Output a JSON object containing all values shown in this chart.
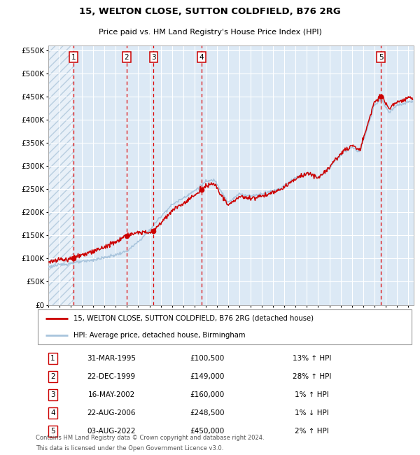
{
  "title": "15, WELTON CLOSE, SUTTON COLDFIELD, B76 2RG",
  "subtitle": "Price paid vs. HM Land Registry's House Price Index (HPI)",
  "legend_line1": "15, WELTON CLOSE, SUTTON COLDFIELD, B76 2RG (detached house)",
  "legend_line2": "HPI: Average price, detached house, Birmingham",
  "footnote1": "Contains HM Land Registry data © Crown copyright and database right 2024.",
  "footnote2": "This data is licensed under the Open Government Licence v3.0.",
  "sale_points": [
    {
      "num": 1,
      "date": "31-MAR-1995",
      "price": 100500,
      "pct": "13%",
      "dir": "↑",
      "x_year": 1995.25
    },
    {
      "num": 2,
      "date": "22-DEC-1999",
      "price": 149000,
      "pct": "28%",
      "dir": "↑",
      "x_year": 1999.97
    },
    {
      "num": 3,
      "date": "16-MAY-2002",
      "price": 160000,
      "pct": "1%",
      "dir": "↑",
      "x_year": 2002.37
    },
    {
      "num": 4,
      "date": "22-AUG-2006",
      "price": 248500,
      "pct": "1%",
      "dir": "↓",
      "x_year": 2006.64
    },
    {
      "num": 5,
      "date": "03-AUG-2022",
      "price": 450000,
      "pct": "2%",
      "dir": "↑",
      "x_year": 2022.58
    }
  ],
  "hpi_color": "#a8c4dc",
  "price_color": "#cc0000",
  "sale_dot_color": "#cc0000",
  "vline_color": "#dd0000",
  "box_color": "#cc0000",
  "bg_color": "#dce9f5",
  "grid_color": "#ffffff",
  "ylim": [
    0,
    560000
  ],
  "xlim_start": 1993.0,
  "xlim_end": 2025.5,
  "yticks": [
    0,
    50000,
    100000,
    150000,
    200000,
    250000,
    300000,
    350000,
    400000,
    450000,
    500000,
    550000
  ]
}
